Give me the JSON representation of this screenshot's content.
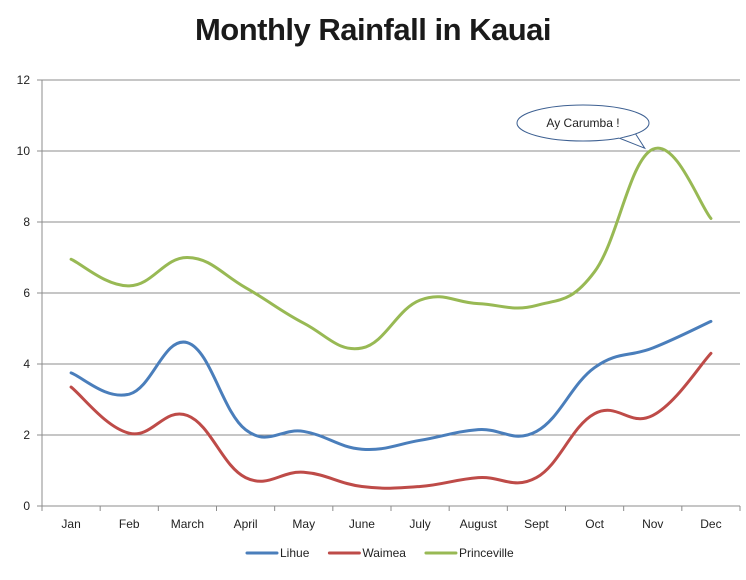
{
  "chart_data": {
    "type": "line",
    "title": "Monthly Rainfall in Kauai",
    "xlabel": "",
    "ylabel": "",
    "categories": [
      "Jan",
      "Feb",
      "March",
      "April",
      "May",
      "June",
      "July",
      "August",
      "Sept",
      "Oct",
      "Nov",
      "Dec"
    ],
    "ylim": [
      0,
      12
    ],
    "yticks": [
      0,
      2,
      4,
      6,
      8,
      10,
      12
    ],
    "grid": true,
    "legend": "bottom",
    "smooth": true,
    "series": [
      {
        "name": "Lihue",
        "color": "#4a7ebb",
        "values": [
          3.75,
          3.15,
          4.6,
          2.15,
          2.1,
          1.6,
          1.85,
          2.15,
          2.1,
          3.9,
          4.45,
          5.2
        ]
      },
      {
        "name": "Waimea",
        "color": "#be4b48",
        "values": [
          3.35,
          2.05,
          2.55,
          0.8,
          0.95,
          0.55,
          0.55,
          0.8,
          0.8,
          2.6,
          2.55,
          4.3
        ]
      },
      {
        "name": "Princeville",
        "color": "#98b954",
        "values": [
          6.95,
          6.2,
          7.0,
          6.15,
          5.15,
          4.45,
          5.8,
          5.7,
          5.65,
          6.6,
          10.05,
          8.1
        ]
      }
    ],
    "annotation": {
      "text": "Ay Carumba !",
      "category": "Nov",
      "series": "Princeville"
    }
  }
}
